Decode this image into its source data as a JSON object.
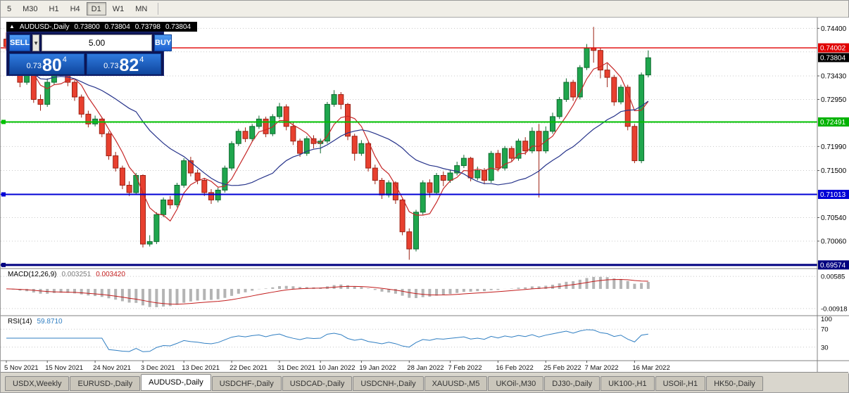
{
  "colors": {
    "grid": "#c8c8c8",
    "candle_up": "#1fa64d",
    "candle_up_border": "#0f6b30",
    "candle_down": "#e8402f",
    "candle_down_border": "#9c2114",
    "ma_fast": "#c62828",
    "ma_slow": "#27348b",
    "macd_bar": "#b4b4b4",
    "macd_signal": "#c21b1b",
    "rsi_line": "#2f7ec2",
    "axis_text": "#000000",
    "separator": "#808080"
  },
  "toolbar": {
    "timeframes": [
      {
        "label": "5",
        "active": false
      },
      {
        "label": "M30",
        "active": false
      },
      {
        "label": "H1",
        "active": false
      },
      {
        "label": "H4",
        "active": false
      },
      {
        "label": "D1",
        "active": true
      },
      {
        "label": "W1",
        "active": false
      },
      {
        "label": "MN",
        "active": false
      }
    ]
  },
  "chart": {
    "header": {
      "arrow": "▲",
      "title": "AUDUSD-,Daily",
      "open": "0.73800",
      "high": "0.73804",
      "low": "0.73798",
      "close": "0.73804"
    },
    "trade_panel": {
      "sell_label": "SELL",
      "buy_label": "BUY",
      "volume": "5.00",
      "dropdown_icon": "▼",
      "bid": {
        "prefix": "0.73",
        "big": "80",
        "sup": "4"
      },
      "ask": {
        "prefix": "0.73",
        "big": "82",
        "sup": "4"
      }
    }
  },
  "chart_data": {
    "type": "candlestick",
    "title": "AUDUSD-,Daily",
    "ylim": [
      0.695,
      0.7462
    ],
    "grid_levels": [
      0.744,
      0.7392,
      0.7343,
      0.7295,
      0.7247,
      0.7199,
      0.715,
      0.7102,
      0.7054,
      0.7006,
      0.6958
    ],
    "axis_labels": [
      {
        "price": 0.744,
        "text": "0.74400"
      },
      {
        "price": 0.7343,
        "text": "0.73430"
      },
      {
        "price": 0.7295,
        "text": "0.72950"
      },
      {
        "price": 0.7199,
        "text": "0.71990"
      },
      {
        "price": 0.715,
        "text": "0.71500"
      },
      {
        "price": 0.7054,
        "text": "0.70540"
      },
      {
        "price": 0.7006,
        "text": "0.70060"
      }
    ],
    "badges": [
      {
        "price": 0.74002,
        "text": "0.74002",
        "color": "#e00000"
      },
      {
        "price": 0.73804,
        "text": "0.73804",
        "color": "#000000"
      },
      {
        "price": 0.72491,
        "text": "0.72491",
        "color": "#00b300"
      },
      {
        "price": 0.71013,
        "text": "0.71013",
        "color": "#0000d6"
      },
      {
        "price": 0.69574,
        "text": "0.69574",
        "color": "#000080"
      }
    ],
    "hlines": [
      {
        "price": 0.74002,
        "color": "#e00000",
        "width": 1.4,
        "marker": false
      },
      {
        "price": 0.72491,
        "color": "#00c000",
        "width": 2,
        "marker": true
      },
      {
        "price": 0.71013,
        "color": "#0000d6",
        "width": 2,
        "marker": true
      },
      {
        "price": 0.69574,
        "color": "#000080",
        "width": 3,
        "marker": true
      }
    ],
    "date_ticks": [
      {
        "label": "5 Nov 2021",
        "index": 0
      },
      {
        "label": "15 Nov 2021",
        "index": 6
      },
      {
        "label": "24 Nov 2021",
        "index": 13
      },
      {
        "label": "3 Dec 2021",
        "index": 20
      },
      {
        "label": "13 Dec 2021",
        "index": 26
      },
      {
        "label": "22 Dec 2021",
        "index": 33
      },
      {
        "label": "31 Dec 2021",
        "index": 40
      },
      {
        "label": "10 Jan 2022",
        "index": 46
      },
      {
        "label": "19 Jan 2022",
        "index": 52
      },
      {
        "label": "28 Jan 2022",
        "index": 59
      },
      {
        "label": "7 Feb 2022",
        "index": 65
      },
      {
        "label": "16 Feb 2022",
        "index": 72
      },
      {
        "label": "25 Feb 2022",
        "index": 79
      },
      {
        "label": "7 Mar 2022",
        "index": 85
      },
      {
        "label": "16 Mar 2022",
        "index": 92
      }
    ],
    "candles": [
      [
        0.7418,
        0.7432,
        0.7395,
        0.7403
      ],
      [
        0.7403,
        0.741,
        0.7358,
        0.7365
      ],
      [
        0.7365,
        0.7372,
        0.732,
        0.733
      ],
      [
        0.733,
        0.7352,
        0.7325,
        0.7345
      ],
      [
        0.7345,
        0.7348,
        0.7288,
        0.7295
      ],
      [
        0.7295,
        0.7305,
        0.7272,
        0.7285
      ],
      [
        0.7285,
        0.7338,
        0.728,
        0.733
      ],
      [
        0.733,
        0.7375,
        0.7325,
        0.737
      ],
      [
        0.737,
        0.7378,
        0.7345,
        0.7355
      ],
      [
        0.7355,
        0.736,
        0.7322,
        0.733
      ],
      [
        0.733,
        0.7335,
        0.7292,
        0.73
      ],
      [
        0.73,
        0.7305,
        0.7258,
        0.7265
      ],
      [
        0.7265,
        0.7272,
        0.7238,
        0.7245
      ],
      [
        0.7245,
        0.7262,
        0.724,
        0.7255
      ],
      [
        0.7255,
        0.7258,
        0.7218,
        0.7225
      ],
      [
        0.7225,
        0.723,
        0.7172,
        0.718
      ],
      [
        0.718,
        0.7188,
        0.7148,
        0.7155
      ],
      [
        0.7155,
        0.716,
        0.7112,
        0.712
      ],
      [
        0.712,
        0.7128,
        0.7098,
        0.7105
      ],
      [
        0.7105,
        0.7145,
        0.71,
        0.714
      ],
      [
        0.714,
        0.7142,
        0.6993,
        0.7
      ],
      [
        0.7,
        0.7018,
        0.6995,
        0.7005
      ],
      [
        0.7005,
        0.7065,
        0.7,
        0.706
      ],
      [
        0.706,
        0.7095,
        0.7055,
        0.709
      ],
      [
        0.709,
        0.7098,
        0.7072,
        0.708
      ],
      [
        0.708,
        0.7125,
        0.7075,
        0.712
      ],
      [
        0.712,
        0.7175,
        0.7115,
        0.717
      ],
      [
        0.717,
        0.7178,
        0.7138,
        0.7145
      ],
      [
        0.7145,
        0.7152,
        0.7122,
        0.713
      ],
      [
        0.713,
        0.7135,
        0.7098,
        0.7105
      ],
      [
        0.7105,
        0.7112,
        0.7082,
        0.709
      ],
      [
        0.709,
        0.7115,
        0.7085,
        0.711
      ],
      [
        0.711,
        0.716,
        0.7105,
        0.7155
      ],
      [
        0.7155,
        0.721,
        0.715,
        0.7205
      ],
      [
        0.7205,
        0.7235,
        0.72,
        0.723
      ],
      [
        0.723,
        0.7238,
        0.7208,
        0.7215
      ],
      [
        0.7215,
        0.7245,
        0.721,
        0.724
      ],
      [
        0.724,
        0.7262,
        0.7235,
        0.7255
      ],
      [
        0.7255,
        0.726,
        0.7218,
        0.7225
      ],
      [
        0.7225,
        0.7265,
        0.722,
        0.726
      ],
      [
        0.726,
        0.7288,
        0.7255,
        0.728
      ],
      [
        0.728,
        0.7285,
        0.7232,
        0.724
      ],
      [
        0.724,
        0.7248,
        0.7202,
        0.721
      ],
      [
        0.721,
        0.7215,
        0.7178,
        0.7185
      ],
      [
        0.7185,
        0.722,
        0.718,
        0.7215
      ],
      [
        0.7215,
        0.7222,
        0.7195,
        0.7205
      ],
      [
        0.7205,
        0.7215,
        0.7185,
        0.721
      ],
      [
        0.721,
        0.729,
        0.7205,
        0.7285
      ],
      [
        0.7285,
        0.7314,
        0.728,
        0.7305
      ],
      [
        0.7305,
        0.731,
        0.7275,
        0.7285
      ],
      [
        0.7285,
        0.7288,
        0.7212,
        0.722
      ],
      [
        0.722,
        0.7225,
        0.717,
        0.7185
      ],
      [
        0.7185,
        0.7212,
        0.718,
        0.7205
      ],
      [
        0.7205,
        0.7208,
        0.7148,
        0.7155
      ],
      [
        0.7155,
        0.7162,
        0.7122,
        0.713
      ],
      [
        0.713,
        0.7135,
        0.7092,
        0.71
      ],
      [
        0.71,
        0.713,
        0.7095,
        0.7125
      ],
      [
        0.7125,
        0.7128,
        0.7082,
        0.709
      ],
      [
        0.709,
        0.7092,
        0.7018,
        0.7025
      ],
      [
        0.7025,
        0.7032,
        0.6968,
        0.699
      ],
      [
        0.699,
        0.707,
        0.6985,
        0.7065
      ],
      [
        0.7065,
        0.713,
        0.706,
        0.7125
      ],
      [
        0.7125,
        0.7132,
        0.7095,
        0.7105
      ],
      [
        0.7105,
        0.7145,
        0.71,
        0.714
      ],
      [
        0.714,
        0.7148,
        0.7118,
        0.713
      ],
      [
        0.713,
        0.7152,
        0.7125,
        0.7145
      ],
      [
        0.7145,
        0.7168,
        0.714,
        0.716
      ],
      [
        0.716,
        0.7182,
        0.7155,
        0.7175
      ],
      [
        0.7175,
        0.7178,
        0.7128,
        0.7135
      ],
      [
        0.7135,
        0.7158,
        0.713,
        0.715
      ],
      [
        0.715,
        0.7155,
        0.7122,
        0.713
      ],
      [
        0.713,
        0.719,
        0.7125,
        0.7185
      ],
      [
        0.7185,
        0.7192,
        0.7148,
        0.7155
      ],
      [
        0.7155,
        0.72,
        0.715,
        0.7195
      ],
      [
        0.7195,
        0.72,
        0.7168,
        0.7175
      ],
      [
        0.7175,
        0.7215,
        0.717,
        0.721
      ],
      [
        0.721,
        0.7218,
        0.7182,
        0.719
      ],
      [
        0.719,
        0.7238,
        0.7185,
        0.723
      ],
      [
        0.723,
        0.7245,
        0.7095,
        0.719
      ],
      [
        0.719,
        0.724,
        0.7185,
        0.723
      ],
      [
        0.723,
        0.7268,
        0.7225,
        0.726
      ],
      [
        0.726,
        0.73,
        0.7255,
        0.7295
      ],
      [
        0.7295,
        0.7338,
        0.729,
        0.733
      ],
      [
        0.733,
        0.7335,
        0.7292,
        0.73
      ],
      [
        0.73,
        0.7365,
        0.7295,
        0.736
      ],
      [
        0.736,
        0.7408,
        0.7355,
        0.74
      ],
      [
        0.74,
        0.7443,
        0.737,
        0.7395
      ],
      [
        0.7395,
        0.74,
        0.7338,
        0.7355
      ],
      [
        0.7355,
        0.7368,
        0.732,
        0.734
      ],
      [
        0.734,
        0.7345,
        0.7282,
        0.729
      ],
      [
        0.729,
        0.7325,
        0.7285,
        0.732
      ],
      [
        0.732,
        0.7325,
        0.7232,
        0.724
      ],
      [
        0.724,
        0.7245,
        0.7165,
        0.717
      ],
      [
        0.717,
        0.735,
        0.7165,
        0.7345
      ],
      [
        0.7345,
        0.7395,
        0.734,
        0.738
      ]
    ],
    "indicators": {
      "macd": {
        "label": "MACD(12,26,9)",
        "value_main": "0.003251",
        "value_signal": "0.003420",
        "ylim": [
          -0.0125,
          0.0095
        ],
        "axis": [
          {
            "value": 0.00585,
            "text": "0.00585"
          },
          {
            "value": -0.00918,
            "text": "-0.00918"
          }
        ]
      },
      "rsi": {
        "label": "RSI(14)",
        "value": "59.8710",
        "ylim": [
          0,
          100
        ],
        "levels": [
          70,
          30
        ],
        "axis_labels": [
          {
            "value": 100,
            "text": "100"
          },
          {
            "value": 70,
            "text": "70"
          },
          {
            "value": 30,
            "text": "30"
          }
        ]
      }
    }
  },
  "tabs": [
    {
      "label": "USDX,Weekly",
      "active": false
    },
    {
      "label": "EURUSD-,Daily",
      "active": false
    },
    {
      "label": "AUDUSD-,Daily",
      "active": true
    },
    {
      "label": "USDCHF-,Daily",
      "active": false
    },
    {
      "label": "USDCAD-,Daily",
      "active": false
    },
    {
      "label": "USDCNH-,Daily",
      "active": false
    },
    {
      "label": "XAUUSD-,M5",
      "active": false
    },
    {
      "label": "UKOil-,M30",
      "active": false
    },
    {
      "label": "DJ30-,Daily",
      "active": false
    },
    {
      "label": "UK100-,H1",
      "active": false
    },
    {
      "label": "USOil-,H1",
      "active": false
    },
    {
      "label": "HK50-,Daily",
      "active": false
    }
  ]
}
